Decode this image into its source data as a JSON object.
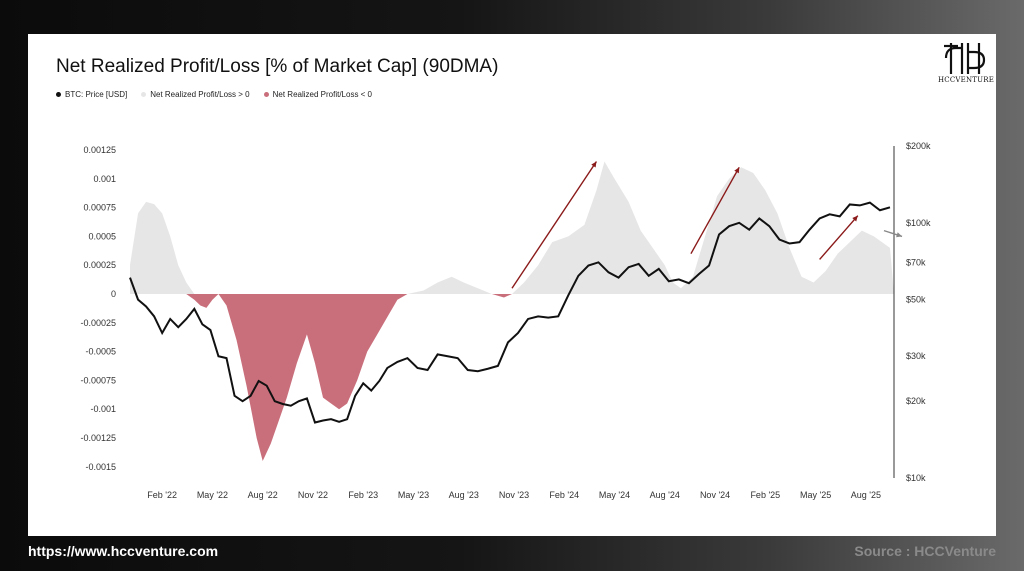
{
  "title": "Net Realized Profit/Loss [% of Market Cap] (90DMA)",
  "legend": [
    {
      "label": "BTC: Price [USD]",
      "color": "#111111"
    },
    {
      "label": "Net Realized Profit/Loss > 0",
      "color": "#e6e6e6"
    },
    {
      "label": "Net Realized Profit/Loss < 0",
      "color": "#c96f7c"
    }
  ],
  "logo_text": "HCCVENTURE",
  "footer": {
    "url": "https://www.hccventure.com",
    "source": "Source : HCCVenture"
  },
  "chart_data": {
    "type": "area",
    "x_ticks": [
      "Feb '22",
      "May '22",
      "Aug '22",
      "Nov '22",
      "Feb '23",
      "May '23",
      "Aug '23",
      "Nov '23",
      "Feb '24",
      "May '24",
      "Aug '24",
      "Nov '24",
      "Feb '25",
      "May '25",
      "Aug '25"
    ],
    "y_left_ticks": [
      "0.00125",
      "0.001",
      "0.00075",
      "0.0005",
      "0.00025",
      "0",
      "-0.00025",
      "-0.0005",
      "-0.00075",
      "-0.001",
      "-0.00125",
      "-0.0015"
    ],
    "y_left_range": [
      -0.0016,
      0.00125
    ],
    "y_right_ticks": [
      "$200k",
      "$100k",
      "$70k",
      "$50k",
      "$30k",
      "$20k",
      "$10k"
    ],
    "y_right_range": [
      10000,
      200000
    ],
    "y_right_scale": "log",
    "x_range": [
      2021.92,
      2025.72
    ],
    "net_realized_pl": [
      [
        2021.92,
        0.00025
      ],
      [
        2021.96,
        0.0007
      ],
      [
        2022.0,
        0.0008
      ],
      [
        2022.04,
        0.00078
      ],
      [
        2022.08,
        0.0007
      ],
      [
        2022.12,
        0.0005
      ],
      [
        2022.16,
        0.00025
      ],
      [
        2022.2,
        0.0001
      ],
      [
        2022.24,
        -5e-05
      ],
      [
        2022.27,
        -0.0001
      ],
      [
        2022.3,
        -0.00012
      ],
      [
        2022.33,
        -5e-05
      ],
      [
        2022.36,
        0.0
      ],
      [
        2022.4,
        -0.0001
      ],
      [
        2022.45,
        -0.0004
      ],
      [
        2022.5,
        -0.0008
      ],
      [
        2022.55,
        -0.00125
      ],
      [
        2022.58,
        -0.00145
      ],
      [
        2022.62,
        -0.0013
      ],
      [
        2022.66,
        -0.0011
      ],
      [
        2022.7,
        -0.0009
      ],
      [
        2022.75,
        -0.0006
      ],
      [
        2022.8,
        -0.00035
      ],
      [
        2022.84,
        -0.0006
      ],
      [
        2022.88,
        -0.0009
      ],
      [
        2022.92,
        -0.00095
      ],
      [
        2022.96,
        -0.001
      ],
      [
        2023.0,
        -0.00095
      ],
      [
        2023.05,
        -0.00075
      ],
      [
        2023.1,
        -0.0005
      ],
      [
        2023.15,
        -0.00035
      ],
      [
        2023.2,
        -0.0002
      ],
      [
        2023.25,
        -5e-05
      ],
      [
        2023.3,
        0.0
      ],
      [
        2023.38,
        3e-05
      ],
      [
        2023.45,
        0.0001
      ],
      [
        2023.52,
        0.00015
      ],
      [
        2023.58,
        0.0001
      ],
      [
        2023.65,
        5e-05
      ],
      [
        2023.72,
        0.0
      ],
      [
        2023.78,
        -3e-05
      ],
      [
        2023.82,
        0.0
      ],
      [
        2023.88,
        0.0001
      ],
      [
        2023.95,
        0.00025
      ],
      [
        2024.02,
        0.00045
      ],
      [
        2024.1,
        0.0005
      ],
      [
        2024.18,
        0.0006
      ],
      [
        2024.24,
        0.0009
      ],
      [
        2024.28,
        0.00115
      ],
      [
        2024.33,
        0.001
      ],
      [
        2024.4,
        0.0008
      ],
      [
        2024.46,
        0.00055
      ],
      [
        2024.52,
        0.0004
      ],
      [
        2024.58,
        0.00025
      ],
      [
        2024.62,
        0.0001
      ],
      [
        2024.66,
        5e-05
      ],
      [
        2024.72,
        0.00015
      ],
      [
        2024.78,
        0.0005
      ],
      [
        2024.84,
        0.00085
      ],
      [
        2024.9,
        0.001
      ],
      [
        2024.96,
        0.0011
      ],
      [
        2025.02,
        0.00105
      ],
      [
        2025.08,
        0.0009
      ],
      [
        2025.14,
        0.0007
      ],
      [
        2025.2,
        0.0004
      ],
      [
        2025.26,
        0.00015
      ],
      [
        2025.32,
        0.0001
      ],
      [
        2025.38,
        0.0002
      ],
      [
        2025.44,
        0.00035
      ],
      [
        2025.5,
        0.00045
      ],
      [
        2025.56,
        0.00055
      ],
      [
        2025.62,
        0.0005
      ],
      [
        2025.66,
        0.00045
      ],
      [
        2025.7,
        0.0004
      ],
      [
        2025.72,
        0.0
      ]
    ],
    "btc_price": [
      [
        2021.92,
        61000
      ],
      [
        2021.96,
        50000
      ],
      [
        2022.0,
        47000
      ],
      [
        2022.04,
        43000
      ],
      [
        2022.08,
        37000
      ],
      [
        2022.12,
        42000
      ],
      [
        2022.16,
        39000
      ],
      [
        2022.2,
        42000
      ],
      [
        2022.24,
        46000
      ],
      [
        2022.28,
        40000
      ],
      [
        2022.32,
        38000
      ],
      [
        2022.36,
        30000
      ],
      [
        2022.4,
        29500
      ],
      [
        2022.44,
        21000
      ],
      [
        2022.48,
        20000
      ],
      [
        2022.52,
        21000
      ],
      [
        2022.56,
        24000
      ],
      [
        2022.6,
        23000
      ],
      [
        2022.64,
        20000
      ],
      [
        2022.68,
        19500
      ],
      [
        2022.72,
        19200
      ],
      [
        2022.76,
        20000
      ],
      [
        2022.8,
        20500
      ],
      [
        2022.84,
        16500
      ],
      [
        2022.88,
        16800
      ],
      [
        2022.92,
        17000
      ],
      [
        2022.96,
        16600
      ],
      [
        2023.0,
        17000
      ],
      [
        2023.04,
        21000
      ],
      [
        2023.08,
        23500
      ],
      [
        2023.12,
        22000
      ],
      [
        2023.16,
        24000
      ],
      [
        2023.2,
        27000
      ],
      [
        2023.25,
        28500
      ],
      [
        2023.3,
        29500
      ],
      [
        2023.35,
        27000
      ],
      [
        2023.4,
        26500
      ],
      [
        2023.45,
        30500
      ],
      [
        2023.5,
        30000
      ],
      [
        2023.55,
        29500
      ],
      [
        2023.6,
        26500
      ],
      [
        2023.65,
        26200
      ],
      [
        2023.7,
        26800
      ],
      [
        2023.75,
        27500
      ],
      [
        2023.8,
        34000
      ],
      [
        2023.85,
        37000
      ],
      [
        2023.9,
        42000
      ],
      [
        2023.95,
        43000
      ],
      [
        2024.0,
        42500
      ],
      [
        2024.05,
        43000
      ],
      [
        2024.1,
        52000
      ],
      [
        2024.15,
        62000
      ],
      [
        2024.2,
        68000
      ],
      [
        2024.25,
        70000
      ],
      [
        2024.3,
        64000
      ],
      [
        2024.35,
        61000
      ],
      [
        2024.4,
        67000
      ],
      [
        2024.45,
        69000
      ],
      [
        2024.5,
        62000
      ],
      [
        2024.55,
        66000
      ],
      [
        2024.6,
        59000
      ],
      [
        2024.65,
        60000
      ],
      [
        2024.7,
        58000
      ],
      [
        2024.75,
        63000
      ],
      [
        2024.8,
        68000
      ],
      [
        2024.85,
        90000
      ],
      [
        2024.9,
        97000
      ],
      [
        2024.95,
        100000
      ],
      [
        2025.0,
        94000
      ],
      [
        2025.05,
        104000
      ],
      [
        2025.1,
        97000
      ],
      [
        2025.15,
        86000
      ],
      [
        2025.2,
        83000
      ],
      [
        2025.25,
        84000
      ],
      [
        2025.3,
        94000
      ],
      [
        2025.35,
        104000
      ],
      [
        2025.4,
        108000
      ],
      [
        2025.45,
        106000
      ],
      [
        2025.5,
        118000
      ],
      [
        2025.55,
        117000
      ],
      [
        2025.6,
        120000
      ],
      [
        2025.65,
        112000
      ],
      [
        2025.7,
        115000
      ]
    ],
    "annotations": [
      {
        "type": "arrow",
        "color": "#8b1a1a",
        "from": [
          2023.82,
          5e-05
        ],
        "to": [
          2024.24,
          0.00115
        ]
      },
      {
        "type": "arrow",
        "color": "#8b1a1a",
        "from": [
          2024.71,
          0.00035
        ],
        "to": [
          2024.95,
          0.0011
        ]
      },
      {
        "type": "arrow",
        "color": "#8b1a1a",
        "from": [
          2025.35,
          0.0003
        ],
        "to": [
          2025.54,
          0.00068
        ]
      },
      {
        "type": "arrow",
        "color": "#888888",
        "from": [
          2025.67,
          0.00055
        ],
        "to": [
          2025.76,
          0.0005
        ]
      }
    ],
    "colors": {
      "positive": "#e6e6e6",
      "negative": "#c96f7c",
      "price": "#111111",
      "arrow": "#8b1a1a"
    }
  }
}
